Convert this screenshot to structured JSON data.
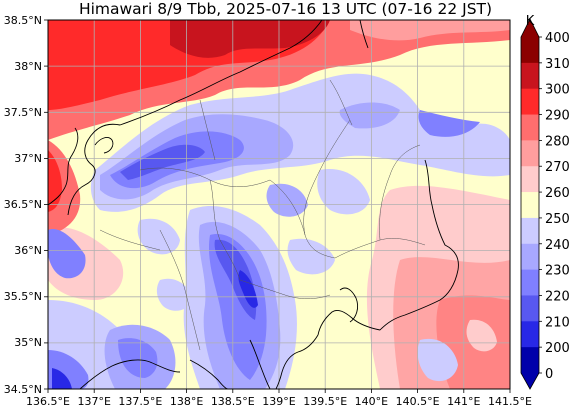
{
  "title": "Himawari 8/9 Tbb, 2025-07-16 13 UTC (07-16 22 JST)",
  "x_ticks": [
    "136.5°E",
    "137°E",
    "137.5°E",
    "138°E",
    "138.5°E",
    "139°E",
    "139.5°E",
    "140°E",
    "140.5°E",
    "141°E",
    "141.5°E"
  ],
  "y_ticks": [
    "38.5°N",
    "38°N",
    "37.5°N",
    "37°N",
    "36.5°N",
    "36°N",
    "35.5°N",
    "35°N",
    "34.5°N"
  ],
  "colorbar": {
    "unit": "K",
    "labels": [
      "400",
      "310",
      "300",
      "290",
      "280",
      "270",
      "260",
      "250",
      "240",
      "230",
      "220",
      "210",
      "200",
      "0"
    ],
    "colors": [
      "#8b0000",
      "#c8141e",
      "#ff2a2a",
      "#ff6e6e",
      "#ff9e9e",
      "#ffcccc",
      "#ffffcc",
      "#ccccff",
      "#a8a8ff",
      "#8080ff",
      "#5858f0",
      "#2828e6",
      "#0000aa"
    ]
  }
}
